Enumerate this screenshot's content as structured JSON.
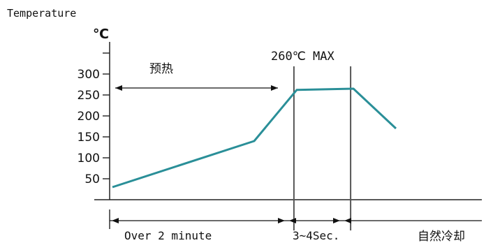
{
  "chart_data": {
    "type": "line",
    "ylabel": "Temperature",
    "yunit": "℃",
    "yticks": [
      50,
      100,
      150,
      200,
      250,
      300
    ],
    "ylim": [
      0,
      350
    ],
    "series": [
      {
        "values": [
          [
            0,
            30
          ],
          [
            10,
            140
          ],
          [
            13,
            262
          ],
          [
            17,
            265
          ],
          [
            20,
            170
          ]
        ]
      }
    ],
    "markers": [
      13,
      17
    ],
    "annotations": {
      "preheat": "预热",
      "peak": "260℃ MAX",
      "over": "Over 2 minute",
      "dwell": "3~4Sec.",
      "cooling": "自然冷却"
    },
    "line_color": "#2a8f98"
  }
}
